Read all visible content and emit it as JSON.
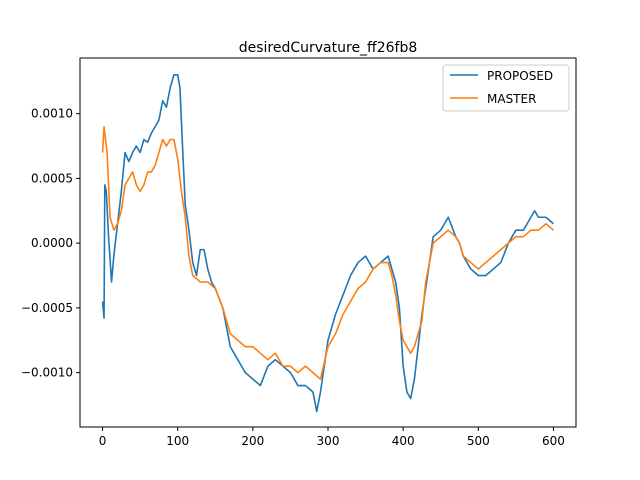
{
  "chart_data": {
    "type": "line",
    "title": "desiredCurvature_ff26fb8",
    "xlabel": "",
    "ylabel": "",
    "xlim": [
      -30,
      630
    ],
    "ylim": [
      -0.00142,
      0.00143
    ],
    "xticks": [
      0,
      100,
      200,
      300,
      400,
      500,
      600
    ],
    "xtick_labels": [
      "0",
      "100",
      "200",
      "300",
      "400",
      "500",
      "600"
    ],
    "yticks": [
      -0.001,
      -0.0005,
      0.0,
      0.0005,
      0.001
    ],
    "ytick_labels": [
      "−0.0010",
      "−0.0005",
      "0.0000",
      "0.0005",
      "0.0010"
    ],
    "grid": false,
    "legend_position": "top-right",
    "series": [
      {
        "name": "PROPOSED",
        "color": "#1f77b4",
        "x": [
          0,
          2,
          3,
          5,
          8,
          12,
          15,
          20,
          25,
          30,
          35,
          40,
          45,
          50,
          55,
          60,
          65,
          70,
          75,
          80,
          85,
          90,
          95,
          100,
          103,
          106,
          110,
          115,
          120,
          125,
          130,
          135,
          140,
          145,
          150,
          160,
          170,
          180,
          190,
          200,
          210,
          220,
          230,
          240,
          250,
          260,
          270,
          280,
          285,
          290,
          300,
          310,
          320,
          330,
          340,
          350,
          360,
          370,
          380,
          385,
          390,
          395,
          400,
          405,
          410,
          415,
          420,
          425,
          430,
          440,
          450,
          460,
          470,
          475,
          480,
          490,
          500,
          510,
          520,
          530,
          540,
          550,
          560,
          570,
          575,
          580,
          590,
          600
        ],
        "y": [
          -0.00045,
          -0.00058,
          0.00045,
          0.0004,
          5e-05,
          -0.0003,
          -0.0001,
          0.00015,
          0.0004,
          0.0007,
          0.00063,
          0.0007,
          0.00075,
          0.0007,
          0.0008,
          0.00078,
          0.00085,
          0.0009,
          0.00095,
          0.0011,
          0.00105,
          0.0012,
          0.0013,
          0.0013,
          0.0012,
          0.0008,
          0.0003,
          0.0001,
          -0.00015,
          -0.00025,
          -5e-05,
          -5e-05,
          -0.0002,
          -0.0003,
          -0.00035,
          -0.0005,
          -0.0008,
          -0.0009,
          -0.001,
          -0.00105,
          -0.0011,
          -0.00095,
          -0.0009,
          -0.00095,
          -0.001,
          -0.0011,
          -0.0011,
          -0.00115,
          -0.0013,
          -0.00115,
          -0.00075,
          -0.00055,
          -0.0004,
          -0.00025,
          -0.00015,
          -0.0001,
          -0.0002,
          -0.00015,
          -0.0001,
          -0.0002,
          -0.0003,
          -0.0005,
          -0.00095,
          -0.00115,
          -0.0012,
          -0.00105,
          -0.0008,
          -0.00055,
          -0.00035,
          5e-05,
          0.0001,
          0.0002,
          5e-05,
          0.0,
          -0.0001,
          -0.0002,
          -0.00025,
          -0.00025,
          -0.0002,
          -0.00015,
          0.0,
          0.0001,
          0.0001,
          0.0002,
          0.00025,
          0.0002,
          0.0002,
          0.00015
        ]
      },
      {
        "name": "MASTER",
        "color": "#ff7f0e",
        "x": [
          0,
          2,
          4,
          6,
          10,
          15,
          20,
          25,
          30,
          35,
          40,
          45,
          50,
          55,
          60,
          65,
          70,
          75,
          80,
          85,
          90,
          95,
          100,
          105,
          110,
          115,
          120,
          130,
          140,
          150,
          160,
          170,
          180,
          190,
          200,
          210,
          220,
          230,
          240,
          250,
          260,
          270,
          280,
          290,
          300,
          310,
          320,
          330,
          340,
          350,
          360,
          370,
          380,
          385,
          390,
          395,
          400,
          405,
          410,
          415,
          420,
          425,
          430,
          440,
          450,
          460,
          470,
          475,
          480,
          490,
          500,
          510,
          520,
          530,
          540,
          550,
          560,
          570,
          580,
          590,
          600
        ],
        "y": [
          0.0007,
          0.0009,
          0.0008,
          0.0007,
          0.0002,
          0.0001,
          0.00015,
          0.00025,
          0.00045,
          0.0005,
          0.00055,
          0.00045,
          0.0004,
          0.00045,
          0.00055,
          0.00055,
          0.0006,
          0.0007,
          0.0008,
          0.00075,
          0.0008,
          0.0008,
          0.00065,
          0.0004,
          0.0002,
          -0.0001,
          -0.00025,
          -0.0003,
          -0.0003,
          -0.00035,
          -0.0005,
          -0.0007,
          -0.00075,
          -0.0008,
          -0.0008,
          -0.00085,
          -0.0009,
          -0.00085,
          -0.00095,
          -0.00095,
          -0.001,
          -0.00095,
          -0.001,
          -0.00105,
          -0.0008,
          -0.0007,
          -0.00055,
          -0.00045,
          -0.00035,
          -0.0003,
          -0.0002,
          -0.00015,
          -0.00015,
          -0.00025,
          -0.0004,
          -0.0006,
          -0.00075,
          -0.0008,
          -0.00085,
          -0.0008,
          -0.0007,
          -0.0006,
          -0.0003,
          0.0,
          5e-05,
          0.0001,
          5e-05,
          0.0,
          -0.0001,
          -0.00015,
          -0.0002,
          -0.00015,
          -0.0001,
          -5e-05,
          0.0,
          5e-05,
          5e-05,
          0.0001,
          0.0001,
          0.00015,
          0.0001
        ]
      }
    ]
  }
}
